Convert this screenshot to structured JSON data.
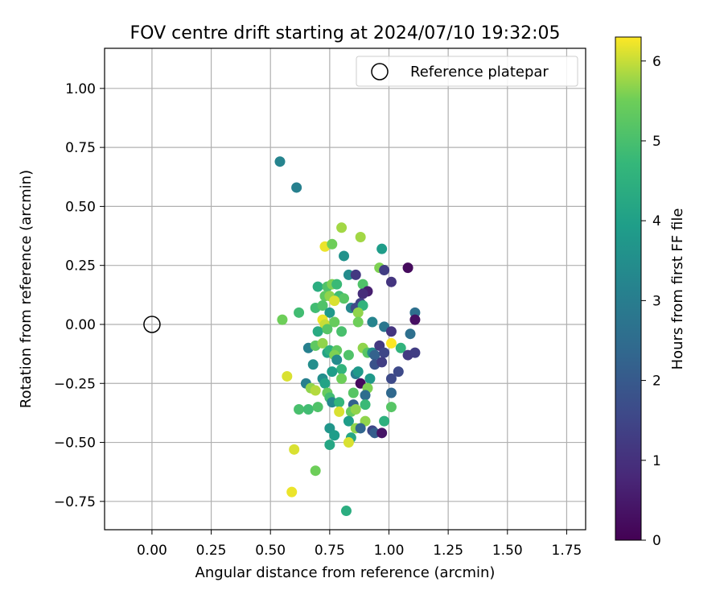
{
  "chart_data": {
    "type": "scatter",
    "title": "FOV centre drift starting at 2024/07/10 19:32:05",
    "xlabel": "Angular distance from reference (arcmin)",
    "ylabel": "Rotation from reference (arcmin)",
    "xlim": [
      -0.2,
      1.83
    ],
    "ylim": [
      -0.87,
      1.17
    ],
    "xticks": [
      "0.00",
      "0.25",
      "0.50",
      "0.75",
      "1.00",
      "1.25",
      "1.50",
      "1.75"
    ],
    "yticks": [
      "−0.75",
      "−0.50",
      "−0.25",
      "0.00",
      "0.25",
      "0.50",
      "0.75",
      "1.00"
    ],
    "grid": true,
    "legend": {
      "placement": "top-right",
      "label": "Reference platepar"
    },
    "colorbar": {
      "label": "Hours from first FF file",
      "range": [
        0,
        6.3
      ],
      "ticks": [
        "0",
        "1",
        "2",
        "3",
        "4",
        "5",
        "6"
      ],
      "colormap": "viridis"
    },
    "reference_point": {
      "x": 0.0,
      "y": 0.0
    },
    "points": [
      {
        "x": 0.54,
        "y": 0.69,
        "c": 3.2
      },
      {
        "x": 0.61,
        "y": 0.58,
        "c": 3.1
      },
      {
        "x": 0.8,
        "y": 0.41,
        "c": 5.8
      },
      {
        "x": 0.88,
        "y": 0.37,
        "c": 5.8
      },
      {
        "x": 0.73,
        "y": 0.33,
        "c": 6.2
      },
      {
        "x": 0.76,
        "y": 0.34,
        "c": 5.5
      },
      {
        "x": 0.81,
        "y": 0.29,
        "c": 3.6
      },
      {
        "x": 0.97,
        "y": 0.32,
        "c": 3.9
      },
      {
        "x": 0.96,
        "y": 0.24,
        "c": 5.6
      },
      {
        "x": 0.98,
        "y": 0.23,
        "c": 1.3
      },
      {
        "x": 1.08,
        "y": 0.24,
        "c": 0.2
      },
      {
        "x": 1.01,
        "y": 0.18,
        "c": 1.1
      },
      {
        "x": 0.83,
        "y": 0.21,
        "c": 3.4
      },
      {
        "x": 0.86,
        "y": 0.21,
        "c": 1.2
      },
      {
        "x": 0.7,
        "y": 0.16,
        "c": 4.4
      },
      {
        "x": 0.74,
        "y": 0.16,
        "c": 5.1
      },
      {
        "x": 0.76,
        "y": 0.17,
        "c": 5.6
      },
      {
        "x": 0.78,
        "y": 0.17,
        "c": 4.8
      },
      {
        "x": 0.89,
        "y": 0.17,
        "c": 5.1
      },
      {
        "x": 0.91,
        "y": 0.14,
        "c": 0.6
      },
      {
        "x": 0.89,
        "y": 0.13,
        "c": 0.9
      },
      {
        "x": 0.73,
        "y": 0.12,
        "c": 5.3
      },
      {
        "x": 0.75,
        "y": 0.12,
        "c": 5.7
      },
      {
        "x": 0.79,
        "y": 0.12,
        "c": 4.9
      },
      {
        "x": 0.81,
        "y": 0.11,
        "c": 5.2
      },
      {
        "x": 0.77,
        "y": 0.1,
        "c": 6.1
      },
      {
        "x": 0.88,
        "y": 0.09,
        "c": 1.4
      },
      {
        "x": 0.84,
        "y": 0.07,
        "c": 3.3
      },
      {
        "x": 0.86,
        "y": 0.07,
        "c": 1.6
      },
      {
        "x": 0.89,
        "y": 0.08,
        "c": 4.6
      },
      {
        "x": 0.69,
        "y": 0.07,
        "c": 4.9
      },
      {
        "x": 0.72,
        "y": 0.08,
        "c": 5.1
      },
      {
        "x": 0.62,
        "y": 0.05,
        "c": 4.9
      },
      {
        "x": 0.75,
        "y": 0.05,
        "c": 3.8
      },
      {
        "x": 0.87,
        "y": 0.05,
        "c": 5.7
      },
      {
        "x": 1.11,
        "y": 0.05,
        "c": 2.6
      },
      {
        "x": 0.55,
        "y": 0.02,
        "c": 5.5
      },
      {
        "x": 0.72,
        "y": 0.02,
        "c": 6.2
      },
      {
        "x": 0.73,
        "y": 0.0,
        "c": 6.0
      },
      {
        "x": 0.77,
        "y": 0.01,
        "c": 5.4
      },
      {
        "x": 0.87,
        "y": 0.01,
        "c": 5.5
      },
      {
        "x": 0.93,
        "y": 0.01,
        "c": 3.2
      },
      {
        "x": 1.11,
        "y": 0.02,
        "c": 0.3
      },
      {
        "x": 0.7,
        "y": -0.03,
        "c": 4.3
      },
      {
        "x": 0.74,
        "y": -0.02,
        "c": 5.2
      },
      {
        "x": 0.8,
        "y": -0.03,
        "c": 5.0
      },
      {
        "x": 0.98,
        "y": -0.01,
        "c": 2.8
      },
      {
        "x": 1.01,
        "y": -0.03,
        "c": 1.1
      },
      {
        "x": 1.09,
        "y": -0.04,
        "c": 2.6
      },
      {
        "x": 0.66,
        "y": -0.1,
        "c": 3.1
      },
      {
        "x": 0.69,
        "y": -0.09,
        "c": 5.3
      },
      {
        "x": 0.72,
        "y": -0.08,
        "c": 5.7
      },
      {
        "x": 0.74,
        "y": -0.12,
        "c": 4.1
      },
      {
        "x": 0.75,
        "y": -0.11,
        "c": 4.5
      },
      {
        "x": 0.78,
        "y": -0.11,
        "c": 5.3
      },
      {
        "x": 0.77,
        "y": -0.13,
        "c": 5.6
      },
      {
        "x": 0.83,
        "y": -0.13,
        "c": 5.1
      },
      {
        "x": 0.89,
        "y": -0.1,
        "c": 5.7
      },
      {
        "x": 0.91,
        "y": -0.12,
        "c": 5.2
      },
      {
        "x": 0.93,
        "y": -0.12,
        "c": 3.5
      },
      {
        "x": 0.94,
        "y": -0.13,
        "c": 2.2
      },
      {
        "x": 0.96,
        "y": -0.09,
        "c": 1.2
      },
      {
        "x": 0.98,
        "y": -0.12,
        "c": 1.5
      },
      {
        "x": 1.01,
        "y": -0.08,
        "c": 6.3
      },
      {
        "x": 1.05,
        "y": -0.1,
        "c": 4.6
      },
      {
        "x": 1.08,
        "y": -0.13,
        "c": 1.2
      },
      {
        "x": 1.11,
        "y": -0.12,
        "c": 1.3
      },
      {
        "x": 0.68,
        "y": -0.17,
        "c": 3.5
      },
      {
        "x": 0.78,
        "y": -0.15,
        "c": 3.4
      },
      {
        "x": 0.8,
        "y": -0.19,
        "c": 4.6
      },
      {
        "x": 0.76,
        "y": -0.2,
        "c": 3.9
      },
      {
        "x": 0.86,
        "y": -0.21,
        "c": 3.0
      },
      {
        "x": 0.87,
        "y": -0.2,
        "c": 3.8
      },
      {
        "x": 0.94,
        "y": -0.17,
        "c": 1.8
      },
      {
        "x": 0.97,
        "y": -0.16,
        "c": 1.3
      },
      {
        "x": 1.04,
        "y": -0.2,
        "c": 1.6
      },
      {
        "x": 0.57,
        "y": -0.22,
        "c": 6.1
      },
      {
        "x": 0.72,
        "y": -0.23,
        "c": 3.5
      },
      {
        "x": 0.73,
        "y": -0.25,
        "c": 4.1
      },
      {
        "x": 0.8,
        "y": -0.23,
        "c": 5.5
      },
      {
        "x": 0.92,
        "y": -0.23,
        "c": 3.8
      },
      {
        "x": 1.01,
        "y": -0.23,
        "c": 1.6
      },
      {
        "x": 0.65,
        "y": -0.25,
        "c": 3.1
      },
      {
        "x": 0.67,
        "y": -0.27,
        "c": 5.7
      },
      {
        "x": 0.69,
        "y": -0.28,
        "c": 5.9
      },
      {
        "x": 0.74,
        "y": -0.29,
        "c": 5.4
      },
      {
        "x": 0.88,
        "y": -0.25,
        "c": 0.2
      },
      {
        "x": 0.91,
        "y": -0.27,
        "c": 5.6
      },
      {
        "x": 0.85,
        "y": -0.29,
        "c": 5.2
      },
      {
        "x": 0.9,
        "y": -0.3,
        "c": 2.5
      },
      {
        "x": 1.01,
        "y": -0.29,
        "c": 2.4
      },
      {
        "x": 0.75,
        "y": -0.31,
        "c": 4.9
      },
      {
        "x": 0.76,
        "y": -0.33,
        "c": 3.3
      },
      {
        "x": 0.79,
        "y": -0.33,
        "c": 4.7
      },
      {
        "x": 0.85,
        "y": -0.34,
        "c": 2.2
      },
      {
        "x": 0.9,
        "y": -0.34,
        "c": 4.8
      },
      {
        "x": 1.01,
        "y": -0.35,
        "c": 5.2
      },
      {
        "x": 0.62,
        "y": -0.36,
        "c": 5.0
      },
      {
        "x": 0.66,
        "y": -0.36,
        "c": 4.9
      },
      {
        "x": 0.7,
        "y": -0.35,
        "c": 5.1
      },
      {
        "x": 0.79,
        "y": -0.37,
        "c": 6.1
      },
      {
        "x": 0.84,
        "y": -0.37,
        "c": 5.4
      },
      {
        "x": 0.86,
        "y": -0.36,
        "c": 5.7
      },
      {
        "x": 0.83,
        "y": -0.41,
        "c": 3.9
      },
      {
        "x": 0.9,
        "y": -0.41,
        "c": 5.7
      },
      {
        "x": 0.98,
        "y": -0.41,
        "c": 4.5
      },
      {
        "x": 0.75,
        "y": -0.44,
        "c": 3.7
      },
      {
        "x": 0.86,
        "y": -0.44,
        "c": 5.7
      },
      {
        "x": 0.88,
        "y": -0.44,
        "c": 2.3
      },
      {
        "x": 0.93,
        "y": -0.45,
        "c": 1.5
      },
      {
        "x": 0.94,
        "y": -0.46,
        "c": 2.1
      },
      {
        "x": 0.97,
        "y": -0.46,
        "c": 0.4
      },
      {
        "x": 0.77,
        "y": -0.47,
        "c": 3.9
      },
      {
        "x": 0.84,
        "y": -0.48,
        "c": 4.2
      },
      {
        "x": 0.75,
        "y": -0.51,
        "c": 4.2
      },
      {
        "x": 0.83,
        "y": -0.5,
        "c": 6.1
      },
      {
        "x": 0.6,
        "y": -0.53,
        "c": 6.1
      },
      {
        "x": 0.69,
        "y": -0.62,
        "c": 5.5
      },
      {
        "x": 0.59,
        "y": -0.71,
        "c": 6.2
      },
      {
        "x": 0.82,
        "y": -0.79,
        "c": 4.4
      }
    ]
  }
}
